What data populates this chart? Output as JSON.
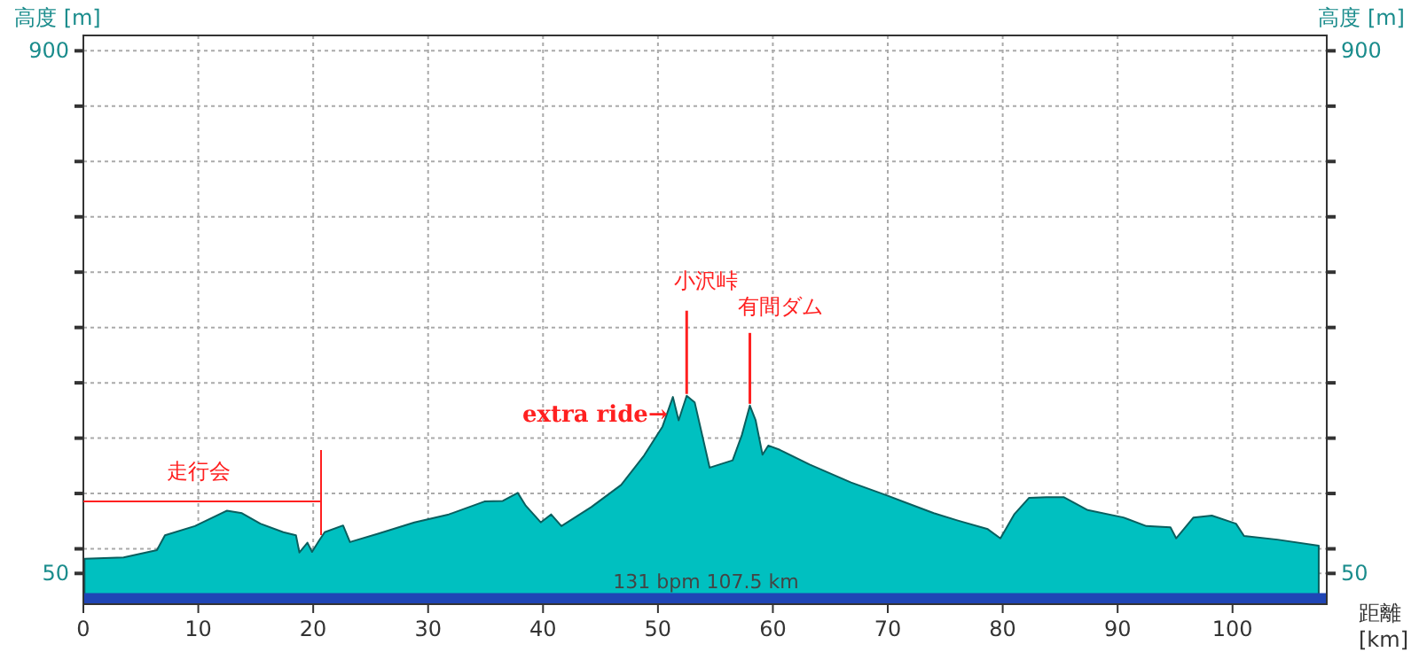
{
  "chart_data": {
    "type": "area",
    "xlabel": "距離 [km]",
    "ylabel": "高度 [m]",
    "y2label": "高度 [m]",
    "x": [
      0.1,
      3.5,
      6.4,
      7.1,
      9.7,
      12.5,
      13.8,
      15.4,
      17.4,
      18.5,
      18.8,
      19.5,
      19.9,
      20.5,
      21.0,
      22.6,
      23.2,
      25.7,
      28.8,
      31.8,
      34.9,
      36.5,
      37.8,
      38.5,
      39.8,
      40.7,
      41.6,
      44.2,
      46.8,
      48.8,
      50.4,
      51.3,
      51.8,
      52.5,
      53.2,
      54.5,
      56.5,
      57.3,
      58.0,
      58.5,
      59.1,
      59.6,
      60.6,
      63.2,
      66.8,
      69.9,
      74.0,
      76.1,
      78.7,
      79.8,
      81.0,
      82.3,
      83.8,
      85.3,
      87.4,
      90.5,
      92.5,
      94.6,
      95.1,
      96.6,
      98.2,
      100.3,
      101.0,
      103.9,
      107.5
    ],
    "series": [
      {
        "color": "#00c0c0",
        "values": [
          74,
          76,
          88,
          112,
          127,
          152,
          148,
          131,
          117,
          112,
          84,
          100,
          85,
          103,
          117,
          128,
          101,
          115,
          133,
          146,
          167,
          168,
          181,
          160,
          133,
          146,
          127,
          158,
          194,
          242,
          289,
          337,
          299,
          339,
          328,
          222,
          234,
          275,
          323,
          299,
          243,
          258,
          251,
          227,
          198,
          177,
          148,
          136,
          122,
          107,
          146,
          173,
          174,
          174,
          153,
          141,
          127,
          125,
          107,
          141,
          144,
          131,
          111,
          105,
          95
        ]
      }
    ],
    "xlim": [
      0,
      108.2
    ],
    "ylim": [
      0,
      925
    ],
    "y2lim": [
      0,
      925
    ],
    "xticks": [
      0,
      10,
      20,
      30,
      40,
      50,
      60,
      70,
      80,
      90,
      100
    ],
    "yticks": [
      50,
      {
        "value": 90,
        "label": null
      },
      {
        "value": 180,
        "label": null
      },
      {
        "value": 270,
        "label": null
      },
      {
        "value": 360,
        "label": null
      },
      {
        "value": 450,
        "label": null
      },
      {
        "value": 540,
        "label": null
      },
      {
        "value": 630,
        "label": null
      },
      {
        "value": 720,
        "label": null
      },
      {
        "value": 810,
        "label": null
      },
      900
    ],
    "y2ticks": [
      50,
      {
        "value": 90,
        "label": null
      },
      {
        "value": 180,
        "label": null
      },
      {
        "value": 270,
        "label": null
      },
      {
        "value": 360,
        "label": null
      },
      {
        "value": 450,
        "label": null
      },
      {
        "value": 540,
        "label": null
      },
      {
        "value": 630,
        "label": null
      },
      {
        "value": 720,
        "label": null
      },
      {
        "value": 810,
        "label": null
      },
      900
    ],
    "grid": true,
    "bands": [
      {
        "axis": "y",
        "from": 0,
        "to": 18,
        "color": "#1f45b5"
      }
    ],
    "annotations": [
      "走行会",
      {
        "text": "extra ride→",
        "x": 51.3,
        "y": 337
      },
      {
        "text": "小沢峠",
        "x": 52.5,
        "y": 339
      },
      {
        "text": "有間ダム",
        "x": 58.0,
        "y": 323
      },
      "131 bpm 107.5 km"
    ]
  }
}
